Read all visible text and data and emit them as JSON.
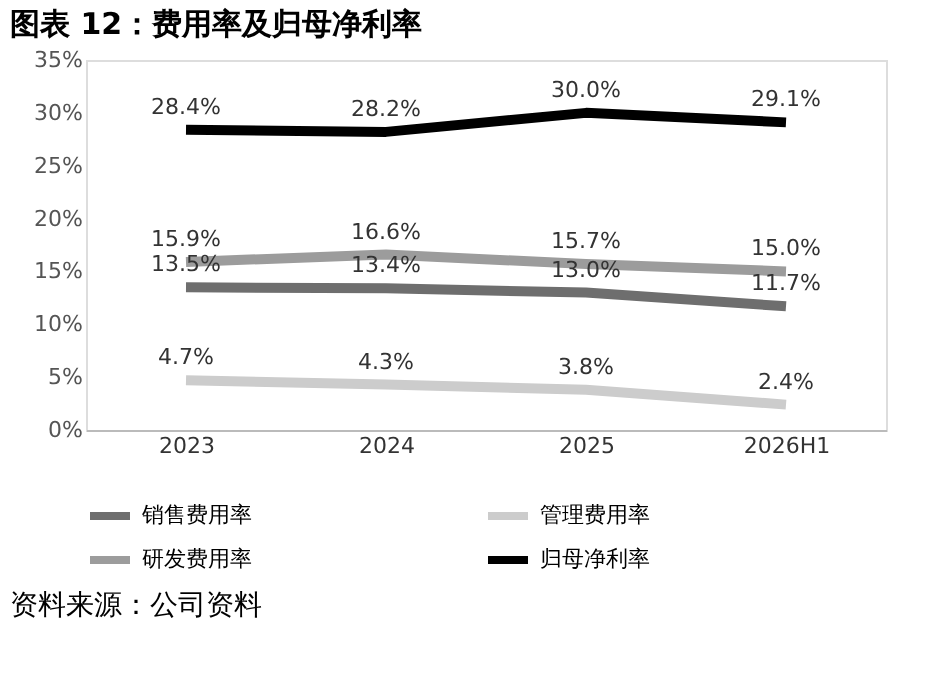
{
  "chart_data": {
    "type": "line",
    "title": "图表 12：费用率及归母净利率",
    "categories": [
      "2023",
      "2024",
      "2025",
      "2026H1"
    ],
    "series": [
      {
        "name": "销售费用率",
        "color": "#6e6e6e",
        "values": [
          13.5,
          13.4,
          13.0,
          11.7
        ],
        "value_labels": [
          "13.5%",
          "13.4%",
          "13.0%",
          "11.7%"
        ]
      },
      {
        "name": "管理费用率",
        "color": "#cccccc",
        "values": [
          4.7,
          4.3,
          3.8,
          2.4
        ],
        "value_labels": [
          "4.7%",
          "4.3%",
          "3.8%",
          "2.4%"
        ]
      },
      {
        "name": "研发费用率",
        "color": "#9c9c9c",
        "values": [
          15.9,
          16.6,
          15.7,
          15.0
        ],
        "value_labels": [
          "15.9%",
          "16.6%",
          "15.7%",
          "15.0%"
        ]
      },
      {
        "name": "归母净利率",
        "color": "#000000",
        "values": [
          28.4,
          28.2,
          30.0,
          29.1
        ],
        "value_labels": [
          "28.4%",
          "28.2%",
          "30.0%",
          "29.1%"
        ]
      }
    ],
    "ylim": [
      0,
      35
    ],
    "yticks": [
      {
        "value": 0,
        "label": "0%"
      },
      {
        "value": 5,
        "label": "5%"
      },
      {
        "value": 10,
        "label": "10%"
      },
      {
        "value": 15,
        "label": "15%"
      },
      {
        "value": 20,
        "label": "20%"
      },
      {
        "value": 25,
        "label": "25%"
      },
      {
        "value": 30,
        "label": "30%"
      },
      {
        "value": 35,
        "label": "35%"
      }
    ],
    "grid": false,
    "legend": "bottom",
    "marker": "none",
    "line_style": "solid",
    "annotations": [
      "资料来源：公司资料"
    ]
  }
}
